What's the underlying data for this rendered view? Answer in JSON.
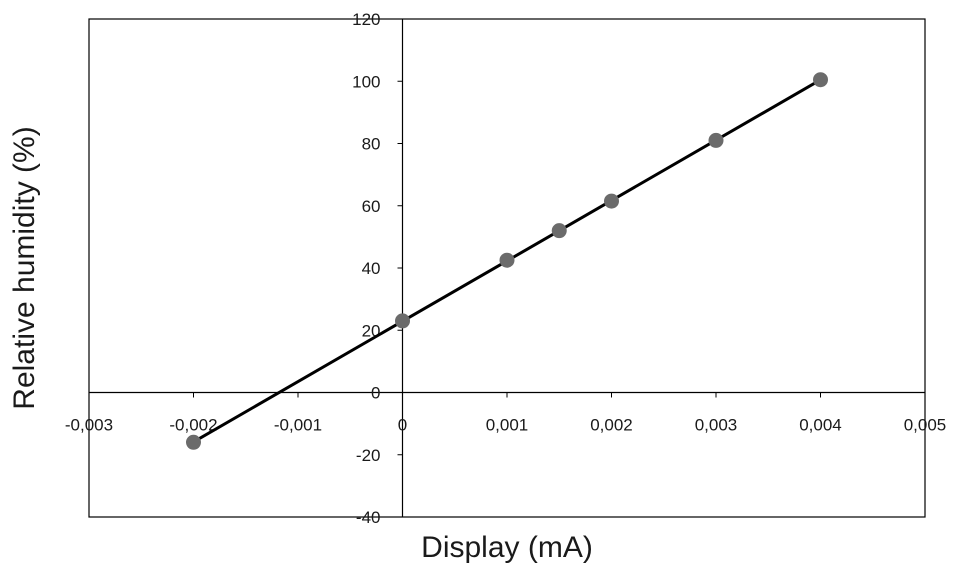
{
  "chart_data": {
    "type": "scatter",
    "title": "",
    "xlabel": "Display (mA)",
    "ylabel": "Relative humidity (%)",
    "xlim": [
      -0.003,
      0.005
    ],
    "ylim": [
      -40,
      120
    ],
    "x_ticks": [
      {
        "value": -0.003,
        "label": "-0,003"
      },
      {
        "value": -0.002,
        "label": "-0,002"
      },
      {
        "value": -0.001,
        "label": "-0,001"
      },
      {
        "value": 0,
        "label": "0"
      },
      {
        "value": 0.001,
        "label": "0,001"
      },
      {
        "value": 0.002,
        "label": "0,002"
      },
      {
        "value": 0.003,
        "label": "0,003"
      },
      {
        "value": 0.004,
        "label": "0,004"
      },
      {
        "value": 0.005,
        "label": "0,005"
      }
    ],
    "y_ticks": [
      {
        "value": -40,
        "label": "-40"
      },
      {
        "value": -20,
        "label": "-20"
      },
      {
        "value": 0,
        "label": "0"
      },
      {
        "value": 20,
        "label": "20"
      },
      {
        "value": 40,
        "label": "40"
      },
      {
        "value": 60,
        "label": "60"
      },
      {
        "value": 80,
        "label": "80"
      },
      {
        "value": 100,
        "label": "100"
      },
      {
        "value": 120,
        "label": "120"
      }
    ],
    "grid": false,
    "legend": "none",
    "series": [
      {
        "x": [
          -0.002,
          0,
          0.001,
          0.0015,
          0.002,
          0.003,
          0.004
        ],
        "y": [
          -16,
          23,
          42.5,
          52,
          61.5,
          81,
          100.5
        ],
        "marker_color": "#6b6b6b",
        "line_color": "#000000",
        "trendline": true
      }
    ]
  }
}
